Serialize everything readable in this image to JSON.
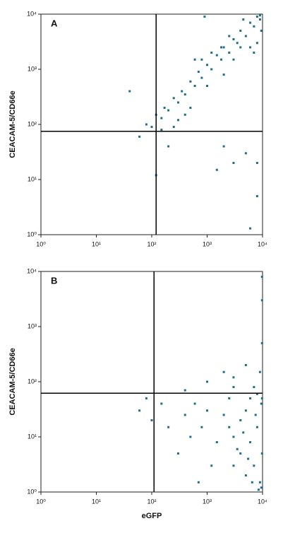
{
  "chart_data": [
    {
      "type": "scatter",
      "label": "A",
      "ylabel": "CEACAM-5/CD66e",
      "color": "#1f6e8c",
      "log": true,
      "xlim": [
        1,
        10000
      ],
      "ylim": [
        1,
        10000
      ],
      "xticks": [
        {
          "value": 1,
          "label": "10⁰"
        },
        {
          "value": 10,
          "label": "10¹"
        },
        {
          "value": 100,
          "label": "10²"
        },
        {
          "value": 1000,
          "label": "10³"
        },
        {
          "value": 10000,
          "label": "10⁴"
        }
      ],
      "yticks": [
        {
          "value": 1,
          "label": "10⁰"
        },
        {
          "value": 10,
          "label": "10¹"
        },
        {
          "value": 100,
          "label": "10²"
        },
        {
          "value": 1000,
          "label": "10³"
        },
        {
          "value": 10000,
          "label": "10⁴"
        }
      ],
      "quadrant": {
        "x": 120,
        "y": 75
      },
      "x": [
        60,
        80,
        100,
        120,
        150,
        170,
        200,
        250,
        300,
        350,
        400,
        500,
        600,
        700,
        800,
        1000,
        1200,
        1500,
        1800,
        2000,
        2500,
        3000,
        3500,
        4000,
        5000,
        6000,
        7000,
        8000,
        9000,
        9500,
        3000,
        2000,
        1000,
        500,
        300,
        150,
        250,
        400,
        7000,
        5000,
        3000,
        8000,
        6000,
        40,
        200,
        8000,
        120,
        2000,
        1500,
        900,
        600,
        9000,
        8000,
        6000,
        4000,
        4500,
        2500,
        1800,
        1200,
        800
      ],
      "values": [
        60,
        100,
        90,
        150,
        130,
        200,
        180,
        300,
        250,
        400,
        350,
        600,
        500,
        900,
        700,
        1200,
        1000,
        1800,
        1500,
        2500,
        2000,
        3500,
        3000,
        5000,
        4000,
        7000,
        6000,
        9000,
        8000,
        5000,
        1500,
        800,
        500,
        200,
        120,
        80,
        90,
        150,
        2000,
        30,
        20,
        5,
        1.3,
        400,
        40,
        20,
        12,
        40,
        15,
        9000,
        1500,
        9500,
        3000,
        2500,
        2500,
        8000,
        4000,
        2500,
        2000,
        1500
      ]
    },
    {
      "type": "scatter",
      "label": "B",
      "ylabel": "CEACAM-5/CD66e",
      "xlabel": "eGFP",
      "color": "#1f6e8c",
      "log": true,
      "xlim": [
        1,
        10000
      ],
      "ylim": [
        1,
        10000
      ],
      "xticks": [
        {
          "value": 1,
          "label": "10⁰"
        },
        {
          "value": 10,
          "label": "10¹"
        },
        {
          "value": 100,
          "label": "10²"
        },
        {
          "value": 1000,
          "label": "10³"
        },
        {
          "value": 10000,
          "label": "10⁴"
        }
      ],
      "yticks": [
        {
          "value": 1,
          "label": "10⁰"
        },
        {
          "value": 10,
          "label": "10¹"
        },
        {
          "value": 100,
          "label": "10²"
        },
        {
          "value": 1000,
          "label": "10³"
        },
        {
          "value": 10000,
          "label": "10⁴"
        }
      ],
      "quadrant": {
        "x": 110,
        "y": 62
      },
      "x": [
        3000,
        4000,
        5000,
        6000,
        7000,
        8000,
        9000,
        9500,
        5000,
        4000,
        3000,
        2500,
        2000,
        1500,
        1000,
        800,
        600,
        500,
        400,
        300,
        200,
        150,
        100,
        80,
        60,
        1000,
        2000,
        3000,
        5000,
        7000,
        9000,
        9800,
        9800,
        9800,
        9800,
        9800,
        9500,
        8500,
        6500,
        5500,
        4500,
        3500,
        7500,
        6000,
        2500,
        1200,
        700,
        400,
        3000,
        8000
      ],
      "values": [
        10,
        5,
        2,
        8,
        3,
        15,
        1.5,
        40,
        30,
        20,
        3,
        15,
        25,
        8,
        30,
        15,
        40,
        10,
        25,
        5,
        15,
        40,
        20,
        50,
        30,
        100,
        150,
        120,
        200,
        80,
        150,
        3000,
        8000,
        500,
        50,
        5,
        1.2,
        1.1,
        1.5,
        4,
        12,
        6,
        25,
        50,
        50,
        3,
        1.5,
        70,
        80,
        60
      ]
    }
  ]
}
